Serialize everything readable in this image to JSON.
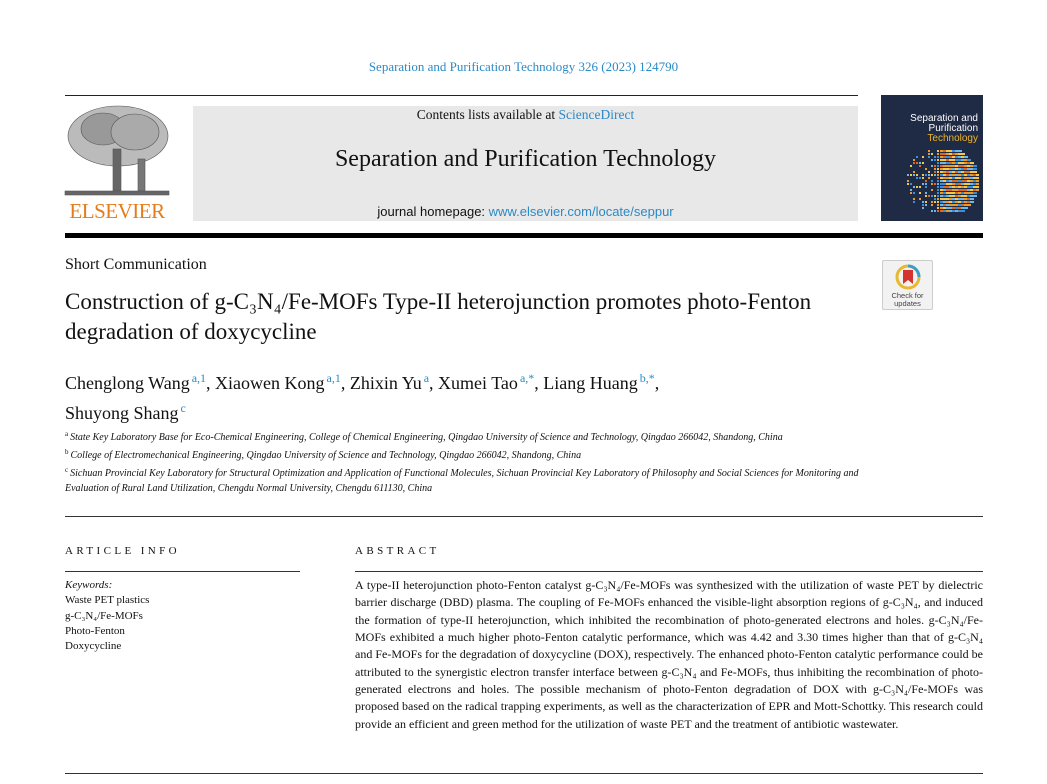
{
  "journal_ref": "Separation and Purification Technology 326 (2023) 124790",
  "header": {
    "contents_prefix": "Contents lists available at ",
    "contents_link": "ScienceDirect",
    "journal_title": "Separation and Purification Technology",
    "homepage_prefix": "journal homepage: ",
    "homepage_link": "www.elsevier.com/locate/seppur",
    "publisher": "ELSEVIER",
    "cover_title_1": "Separation and",
    "cover_title_2": "Purification",
    "cover_title_3": "Technology"
  },
  "article_type": "Short Communication",
  "check_updates": {
    "line1": "Check for",
    "line2": "updates"
  },
  "title": "Construction of g-C₃N₄/Fe-MOFs Type-II heterojunction promotes photo-Fenton degradation of doxycycline",
  "authors": [
    {
      "name": "Chenglong Wang",
      "sup": "a,1"
    },
    {
      "name": "Xiaowen Kong",
      "sup": "a,1"
    },
    {
      "name": "Zhixin Yu",
      "sup": "a"
    },
    {
      "name": "Xumei Tao",
      "sup": "a,*"
    },
    {
      "name": "Liang Huang",
      "sup": "b,*"
    },
    {
      "name": "Shuyong Shang",
      "sup": "c"
    }
  ],
  "affiliations": [
    {
      "key": "a",
      "text": "State Key Laboratory Base for Eco-Chemical Engineering, College of Chemical Engineering, Qingdao University of Science and Technology, Qingdao 266042, Shandong, China"
    },
    {
      "key": "b",
      "text": "College of Electromechanical Engineering, Qingdao University of Science and Technology, Qingdao 266042, Shandong, China"
    },
    {
      "key": "c",
      "text": "Sichuan Provincial Key Laboratory for Structural Optimization and Application of Functional Molecules, Sichuan Provincial Key Laboratory of Philosophy and Social Sciences for Monitoring and Evaluation of Rural Land Utilization, Chengdu Normal University, Chengdu 611130, China"
    }
  ],
  "article_info": {
    "heading": "ARTICLE INFO",
    "keywords_label": "Keywords:",
    "keywords": [
      "Waste PET plastics",
      "g-C₃N₄/Fe-MOFs",
      "Photo-Fenton",
      "Doxycycline"
    ]
  },
  "abstract": {
    "heading": "ABSTRACT",
    "text": "A type-II heterojunction photo-Fenton catalyst g-C₃N₄/Fe-MOFs was synthesized with the utilization of waste PET by dielectric barrier discharge (DBD) plasma. The coupling of Fe-MOFs enhanced the visible-light absorption regions of g-C₃N₄, and induced the formation of type-II heterojunction, which inhibited the recombination of photo-generated electrons and holes. g-C₃N₄/Fe-MOFs exhibited a much higher photo-Fenton catalytic perfor­mance, which was 4.42 and 3.30 times higher than that of g-C₃N₄ and Fe-MOFs for the degradation of doxy­cycline (DOX), respectively. The enhanced photo-Fenton catalytic performance could be attributed to the synergistic electron transfer interface between g-C₃N₄ and Fe-MOFs, thus inhibiting the recombination of photo-generated electrons and holes. The possible mechanism of photo-Fenton degradation of DOX with g-C₃N₄/Fe-MOFs was proposed based on the radical trapping experiments, as well as the characterization of EPR and Mott-Schottky. This research could provide an efficient and green method for the utilization of waste PET and the treatment of antibiotic wastewater."
  },
  "colors": {
    "link": "#2a8ac6",
    "publisher_orange": "#e47c1c",
    "header_box": "#e8e8e8",
    "cover_bg": "#1f2a44"
  }
}
